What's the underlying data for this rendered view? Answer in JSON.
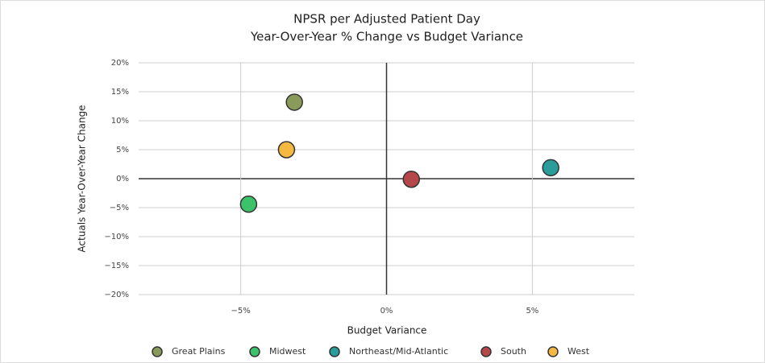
{
  "chart_data": {
    "type": "scatter",
    "title": "NPSR per Adjusted Patient Day",
    "subtitle": "Year-Over-Year % Change vs Budget Variance",
    "x_label": "Budget Variance",
    "y_label": "Actuals Year-Over-Year Change",
    "xlim": [
      -8.5,
      8.5
    ],
    "ylim": [
      -20,
      20
    ],
    "xticks": [
      {
        "value": -5,
        "label": "−5%"
      },
      {
        "value": 0,
        "label": "0%"
      },
      {
        "value": 5,
        "label": "5%"
      }
    ],
    "yticks": [
      {
        "value": -20,
        "label": "−20%"
      },
      {
        "value": -15,
        "label": "−15%"
      },
      {
        "value": -10,
        "label": "−10%"
      },
      {
        "value": -5,
        "label": "−5%"
      },
      {
        "value": 0,
        "label": "0%"
      },
      {
        "value": 5,
        "label": "5%"
      },
      {
        "value": 10,
        "label": "10%"
      },
      {
        "value": 15,
        "label": "15%"
      },
      {
        "value": 20,
        "label": "20%"
      }
    ],
    "grid": true,
    "legend": "bottom",
    "series": [
      {
        "name": "Great Plains",
        "color": "#8a9a5b",
        "x": [
          -3.16
        ],
        "values": [
          13.2
        ]
      },
      {
        "name": "Midwest",
        "color": "#3cc26a",
        "x": [
          -4.73
        ],
        "values": [
          -4.4
        ]
      },
      {
        "name": "Northeast/Mid-Atlantic",
        "color": "#2a9d9a",
        "x": [
          5.63
        ],
        "values": [
          1.9
        ]
      },
      {
        "name": "South",
        "color": "#b5474b",
        "x": [
          0.85
        ],
        "values": [
          -0.1
        ]
      },
      {
        "name": "West",
        "color": "#f5b942",
        "x": [
          -3.43
        ],
        "values": [
          5.0
        ]
      }
    ]
  }
}
